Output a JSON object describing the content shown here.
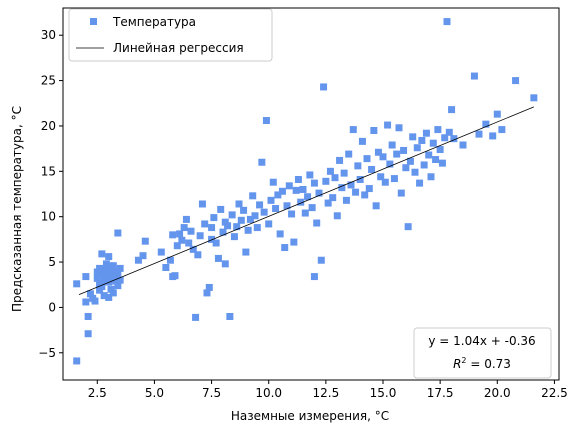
{
  "chart_data": {
    "type": "scatter",
    "xlabel": "Наземные измерения, °C",
    "ylabel": "Предсказанная температура, °C",
    "xlim": [
      1.0,
      22.7
    ],
    "ylim": [
      -8.0,
      33.0
    ],
    "xticks": [
      2.5,
      5.0,
      7.5,
      10.0,
      12.5,
      15.0,
      17.5,
      20.0,
      22.5
    ],
    "xtick_labels": [
      "2.5",
      "5.0",
      "7.5",
      "10.0",
      "12.5",
      "15.0",
      "17.5",
      "20.0",
      "22.5"
    ],
    "yticks": [
      -5,
      0,
      5,
      10,
      15,
      20,
      25,
      30
    ],
    "ytick_labels": [
      "−5",
      "0",
      "5",
      "10",
      "15",
      "20",
      "25",
      "30"
    ],
    "legend": {
      "position": "top-left",
      "entries": [
        "Температура",
        "Линейная регрессия"
      ]
    },
    "annotation": {
      "position": "bottom-right",
      "equation": "y = 1.04x + -0.36",
      "r2_label": "R",
      "r2_sup": "2",
      "r2_value": " = 0.73"
    },
    "regression": {
      "slope": 1.04,
      "intercept": -0.36,
      "x_range": [
        1.7,
        21.6
      ]
    },
    "series": [
      {
        "name": "Температура",
        "color": "#6495ed",
        "marker": "square",
        "points": [
          [
            1.6,
            -5.9
          ],
          [
            1.6,
            2.6
          ],
          [
            2.0,
            3.4
          ],
          [
            2.0,
            0.6
          ],
          [
            2.1,
            -1.0
          ],
          [
            2.1,
            -2.9
          ],
          [
            2.2,
            1.5
          ],
          [
            2.3,
            1.0
          ],
          [
            2.4,
            0.7
          ],
          [
            2.5,
            3.9
          ],
          [
            2.5,
            3.2
          ],
          [
            2.6,
            4.3
          ],
          [
            2.6,
            2.6
          ],
          [
            2.6,
            1.9
          ],
          [
            2.7,
            5.9
          ],
          [
            2.7,
            3.6
          ],
          [
            2.7,
            2.3
          ],
          [
            2.8,
            4.1
          ],
          [
            2.8,
            3.0
          ],
          [
            2.8,
            1.3
          ],
          [
            2.9,
            4.8
          ],
          [
            2.9,
            3.5
          ],
          [
            3.0,
            5.6
          ],
          [
            3.0,
            4.2
          ],
          [
            3.0,
            2.8
          ],
          [
            3.0,
            1.1
          ],
          [
            3.1,
            3.9
          ],
          [
            3.1,
            3.1
          ],
          [
            3.1,
            2.0
          ],
          [
            3.2,
            4.6
          ],
          [
            3.2,
            3.3
          ],
          [
            3.2,
            1.6
          ],
          [
            3.3,
            4.0
          ],
          [
            3.3,
            2.9
          ],
          [
            3.4,
            8.2
          ],
          [
            3.4,
            3.6
          ],
          [
            3.4,
            2.4
          ],
          [
            3.5,
            4.3
          ],
          [
            3.5,
            3.0
          ],
          [
            4.3,
            5.2
          ],
          [
            4.5,
            5.7
          ],
          [
            4.6,
            7.3
          ],
          [
            5.3,
            6.1
          ],
          [
            5.5,
            4.4
          ],
          [
            5.7,
            5.2
          ],
          [
            5.8,
            3.4
          ],
          [
            5.8,
            8.0
          ],
          [
            5.9,
            3.5
          ],
          [
            6.0,
            6.8
          ],
          [
            6.1,
            8.1
          ],
          [
            6.2,
            7.4
          ],
          [
            6.3,
            8.8
          ],
          [
            6.4,
            9.7
          ],
          [
            6.5,
            7.1
          ],
          [
            6.6,
            8.4
          ],
          [
            6.7,
            6.4
          ],
          [
            6.8,
            -1.1
          ],
          [
            6.9,
            5.8
          ],
          [
            7.0,
            7.9
          ],
          [
            7.1,
            11.4
          ],
          [
            7.2,
            9.2
          ],
          [
            7.3,
            1.6
          ],
          [
            7.4,
            2.2
          ],
          [
            7.5,
            7.5
          ],
          [
            7.5,
            8.8
          ],
          [
            7.6,
            9.9
          ],
          [
            7.7,
            7.1
          ],
          [
            7.8,
            5.4
          ],
          [
            7.9,
            10.8
          ],
          [
            8.0,
            8.3
          ],
          [
            8.1,
            9.4
          ],
          [
            8.1,
            4.8
          ],
          [
            8.2,
            9.0
          ],
          [
            8.3,
            -1.0
          ],
          [
            8.4,
            10.2
          ],
          [
            8.5,
            7.8
          ],
          [
            8.6,
            8.9
          ],
          [
            8.7,
            11.4
          ],
          [
            8.8,
            9.6
          ],
          [
            8.9,
            10.7
          ],
          [
            9.0,
            6.1
          ],
          [
            9.1,
            8.5
          ],
          [
            9.2,
            9.7
          ],
          [
            9.3,
            12.3
          ],
          [
            9.4,
            10.1
          ],
          [
            9.5,
            8.8
          ],
          [
            9.6,
            11.3
          ],
          [
            9.7,
            16.0
          ],
          [
            9.8,
            10.5
          ],
          [
            9.9,
            20.6
          ],
          [
            10.0,
            9.2
          ],
          [
            10.1,
            11.8
          ],
          [
            10.2,
            13.8
          ],
          [
            10.3,
            10.9
          ],
          [
            10.4,
            12.4
          ],
          [
            10.5,
            8.1
          ],
          [
            10.6,
            12.8
          ],
          [
            10.7,
            6.6
          ],
          [
            10.8,
            11.2
          ],
          [
            10.9,
            13.4
          ],
          [
            11.0,
            10.3
          ],
          [
            11.1,
            7.2
          ],
          [
            11.2,
            12.9
          ],
          [
            11.3,
            14.1
          ],
          [
            11.4,
            11.6
          ],
          [
            11.5,
            13.0
          ],
          [
            11.6,
            10.4
          ],
          [
            11.7,
            12.2
          ],
          [
            11.8,
            14.6
          ],
          [
            11.9,
            11.0
          ],
          [
            12.0,
            13.7
          ],
          [
            12.0,
            3.4
          ],
          [
            12.1,
            9.3
          ],
          [
            12.2,
            12.6
          ],
          [
            12.3,
            5.2
          ],
          [
            12.4,
            24.3
          ],
          [
            12.5,
            13.9
          ],
          [
            12.6,
            11.5
          ],
          [
            12.7,
            15.0
          ],
          [
            12.8,
            12.1
          ],
          [
            12.9,
            14.3
          ],
          [
            13.0,
            10.1
          ],
          [
            13.1,
            16.2
          ],
          [
            13.2,
            13.2
          ],
          [
            13.3,
            14.8
          ],
          [
            13.4,
            11.8
          ],
          [
            13.5,
            16.9
          ],
          [
            13.6,
            13.5
          ],
          [
            13.7,
            19.6
          ],
          [
            13.8,
            12.7
          ],
          [
            13.9,
            15.6
          ],
          [
            14.0,
            14.1
          ],
          [
            14.1,
            18.3
          ],
          [
            14.2,
            12.4
          ],
          [
            14.3,
            16.4
          ],
          [
            14.4,
            13.1
          ],
          [
            14.5,
            15.2
          ],
          [
            14.6,
            19.5
          ],
          [
            14.7,
            11.2
          ],
          [
            14.8,
            17.1
          ],
          [
            14.9,
            14.4
          ],
          [
            15.0,
            16.6
          ],
          [
            15.1,
            13.8
          ],
          [
            15.2,
            20.1
          ],
          [
            15.3,
            15.8
          ],
          [
            15.4,
            17.9
          ],
          [
            15.5,
            14.2
          ],
          [
            15.6,
            16.9
          ],
          [
            15.7,
            19.8
          ],
          [
            15.8,
            12.6
          ],
          [
            15.9,
            17.3
          ],
          [
            16.0,
            15.4
          ],
          [
            16.1,
            8.9
          ],
          [
            16.2,
            16.1
          ],
          [
            16.3,
            18.8
          ],
          [
            16.4,
            14.9
          ],
          [
            16.5,
            17.6
          ],
          [
            16.6,
            13.7
          ],
          [
            16.7,
            18.4
          ],
          [
            16.8,
            15.7
          ],
          [
            16.9,
            19.2
          ],
          [
            17.0,
            16.8
          ],
          [
            17.1,
            14.4
          ],
          [
            17.2,
            18.1
          ],
          [
            17.3,
            16.3
          ],
          [
            17.4,
            19.6
          ],
          [
            17.5,
            17.4
          ],
          [
            17.6,
            15.9
          ],
          [
            17.7,
            18.7
          ],
          [
            17.8,
            31.5
          ],
          [
            17.9,
            19.3
          ],
          [
            18.0,
            21.8
          ],
          [
            18.1,
            18.6
          ],
          [
            18.5,
            17.9
          ],
          [
            19.0,
            25.5
          ],
          [
            19.2,
            19.1
          ],
          [
            19.5,
            20.2
          ],
          [
            19.8,
            18.9
          ],
          [
            20.0,
            21.3
          ],
          [
            20.2,
            19.6
          ],
          [
            20.8,
            25.0
          ],
          [
            21.6,
            23.1
          ]
        ]
      }
    ]
  }
}
